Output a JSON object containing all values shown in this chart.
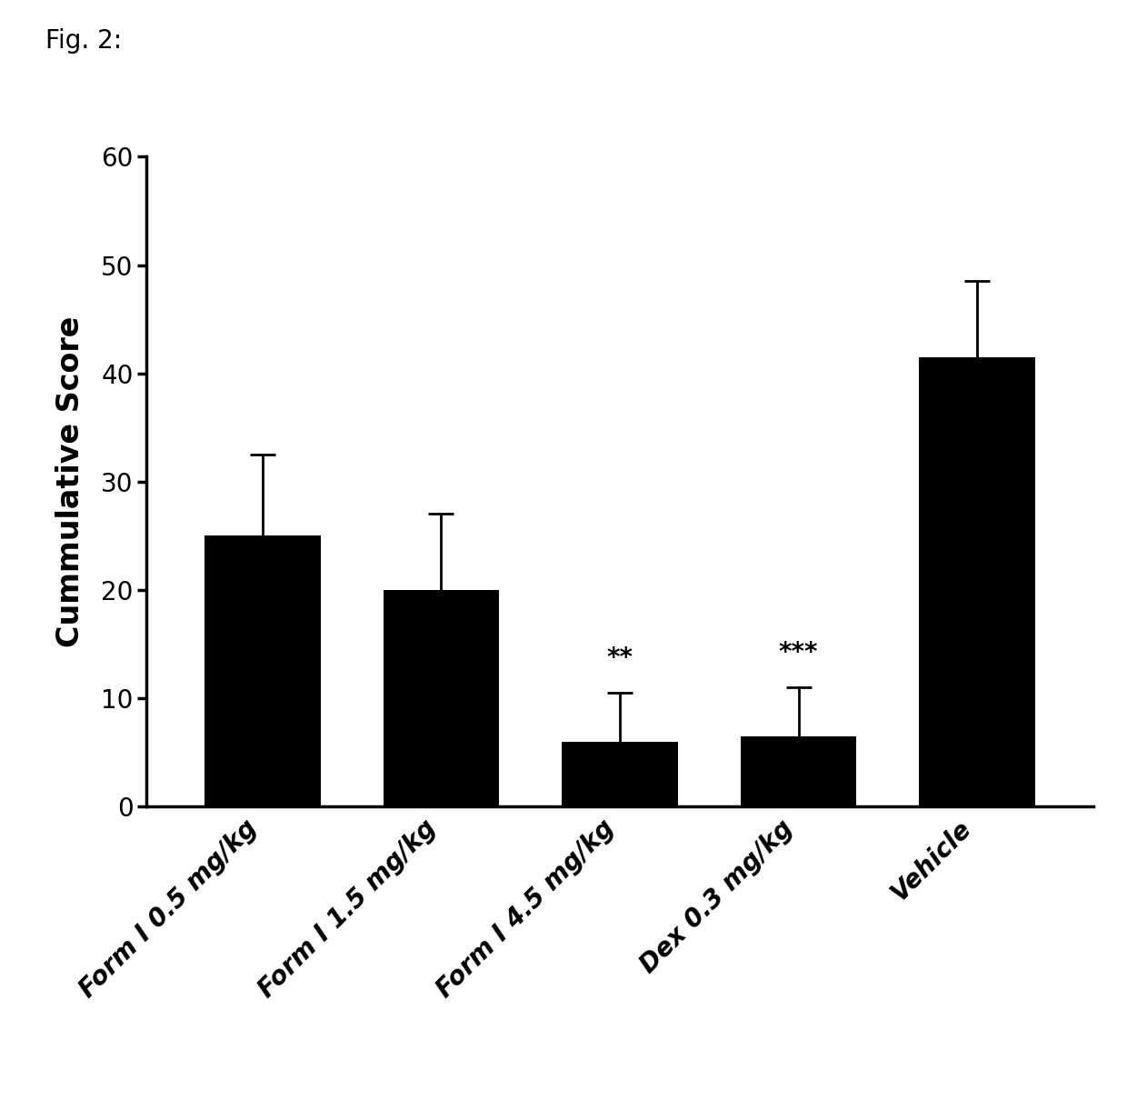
{
  "categories": [
    "Form I 0.5 mg/kg",
    "Form I 1.5 mg/kg",
    "Form I 4.5 mg/kg",
    "Dex 0.3 mg/kg",
    "Vehicle"
  ],
  "values": [
    25.0,
    20.0,
    6.0,
    6.5,
    41.5
  ],
  "errors": [
    7.5,
    7.0,
    4.5,
    4.5,
    7.0
  ],
  "bar_color": "#000000",
  "ylabel": "Cummulative Score",
  "ylim": [
    0,
    60
  ],
  "yticks": [
    0,
    10,
    20,
    30,
    40,
    50,
    60
  ],
  "fig_label": "Fig. 2:",
  "annotations": [
    "",
    "",
    "**",
    "***",
    ""
  ],
  "annotation_offsets": [
    0,
    0,
    2.0,
    2.0,
    0
  ],
  "background_color": "#ffffff",
  "bar_width": 0.65,
  "figsize": [
    12.4,
    12.32
  ],
  "dpi": 100
}
